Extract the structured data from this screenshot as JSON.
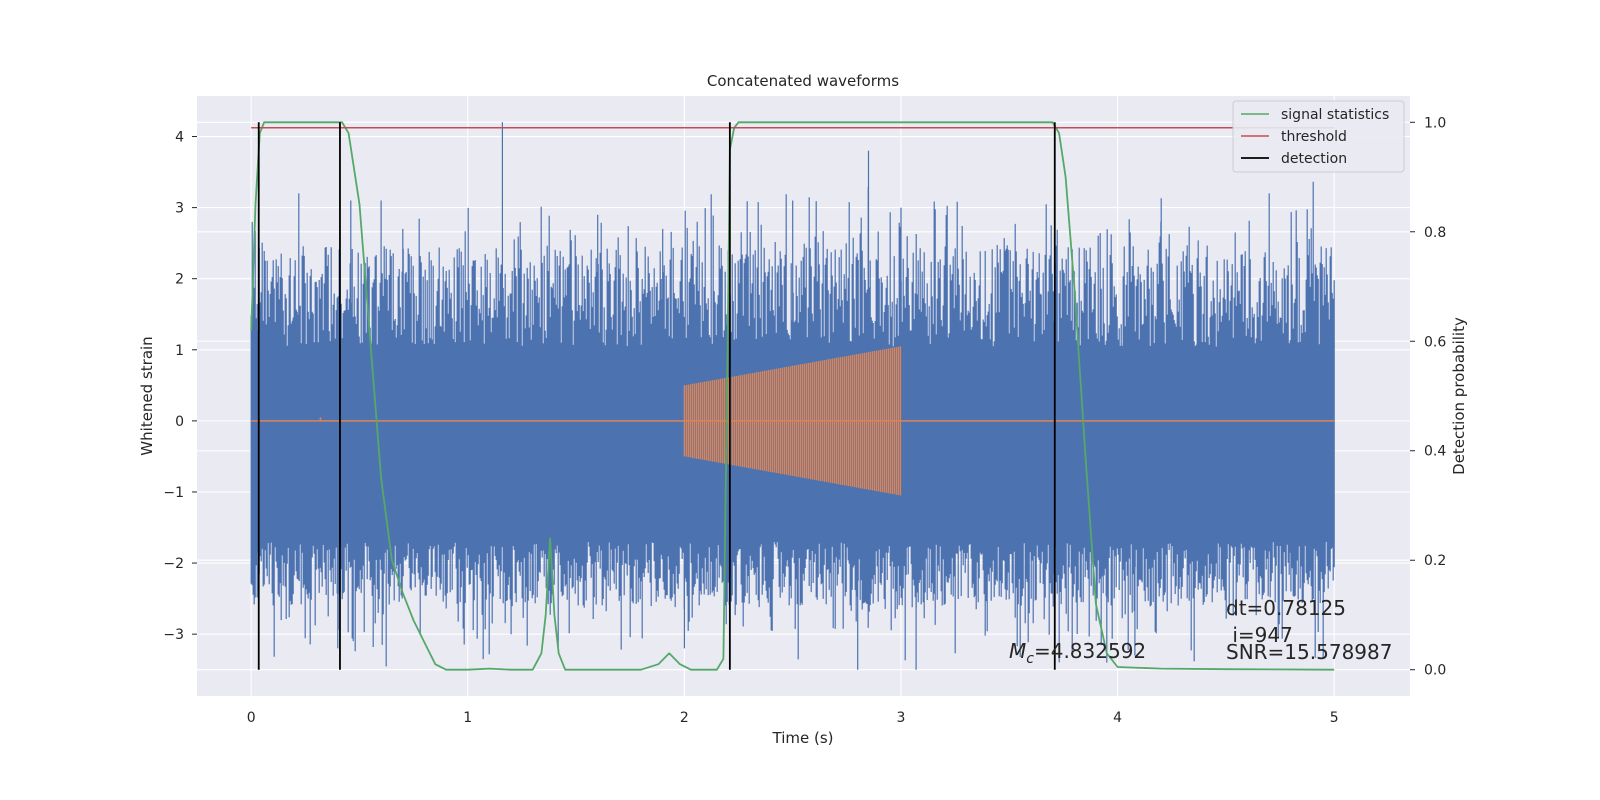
{
  "chart_data": {
    "type": "line",
    "title": "Concatenated waveforms",
    "xlabel": "Time (s)",
    "ylabel": "Whitened strain",
    "y2label": "Detection probability",
    "xlim": [
      -0.25,
      5.35
    ],
    "ylim": [
      -3.87,
      4.57
    ],
    "y2lim": [
      -0.048,
      1.048
    ],
    "xticks": [
      0,
      1,
      2,
      3,
      4,
      5
    ],
    "yticks": [
      -3,
      -2,
      -1,
      0,
      1,
      2,
      3,
      4
    ],
    "y2ticks": [
      0.0,
      0.2,
      0.4,
      0.6,
      0.8,
      1.0
    ],
    "xtick_labels": [
      "0",
      "1",
      "2",
      "3",
      "4",
      "5"
    ],
    "ytick_labels": [
      "−3",
      "−2",
      "−1",
      "0",
      "1",
      "2",
      "3",
      "4"
    ],
    "y2tick_labels": [
      "0.0",
      "0.2",
      "0.4",
      "0.6",
      "0.8",
      "1.0"
    ],
    "grid": true,
    "legend_position": "top-right",
    "colors": {
      "strain": "#4c72b0",
      "template": "#dd8452",
      "signal_statistics": "#55a868",
      "threshold": "#c44e52",
      "detection": "#000000",
      "background": "#eaeaf2",
      "grid": "#ffffff"
    },
    "series": [
      {
        "name": "signal statistics",
        "axis": "right",
        "x": [
          0.0,
          0.02,
          0.04,
          0.06,
          0.08,
          0.1,
          0.2,
          0.3,
          0.38,
          0.42,
          0.45,
          0.5,
          0.55,
          0.6,
          0.65,
          0.7,
          0.75,
          0.8,
          0.85,
          0.9,
          1.0,
          1.1,
          1.2,
          1.3,
          1.34,
          1.36,
          1.38,
          1.4,
          1.42,
          1.45,
          1.5,
          1.6,
          1.7,
          1.8,
          1.88,
          1.93,
          1.98,
          2.03,
          2.1,
          2.15,
          2.18,
          2.2,
          2.21,
          2.23,
          2.25,
          2.3,
          2.5,
          3.0,
          3.5,
          3.7,
          3.73,
          3.76,
          3.8,
          3.85,
          3.9,
          3.95,
          4.0,
          4.2,
          4.5,
          5.0
        ],
        "values": [
          0.62,
          0.85,
          0.98,
          1.0,
          1.0,
          1.0,
          1.0,
          1.0,
          1.0,
          1.0,
          0.98,
          0.85,
          0.6,
          0.35,
          0.2,
          0.14,
          0.09,
          0.05,
          0.01,
          0.0,
          0.0,
          0.002,
          0.0,
          0.0,
          0.03,
          0.1,
          0.24,
          0.1,
          0.03,
          0.0,
          0.0,
          0.0,
          0.0,
          0.0,
          0.01,
          0.03,
          0.01,
          0.0,
          0.0,
          0.0,
          0.02,
          0.6,
          0.95,
          0.99,
          1.0,
          1.0,
          1.0,
          1.0,
          1.0,
          1.0,
          0.98,
          0.9,
          0.7,
          0.4,
          0.12,
          0.03,
          0.005,
          0.002,
          0.001,
          0.0
        ]
      },
      {
        "name": "threshold",
        "axis": "right",
        "x": [
          0.0,
          5.0
        ],
        "values": [
          0.99,
          0.99
        ]
      },
      {
        "name": "detection",
        "axis": "right",
        "x": [
          0.035,
          0.41,
          2.21,
          3.71
        ],
        "y_range": [
          0.0,
          1.0
        ]
      }
    ],
    "strain": {
      "x_range": [
        0.0,
        5.0
      ],
      "typical_range": [
        -1.7,
        1.9
      ],
      "peaks": [
        {
          "x": 0.22,
          "y": 3.2
        },
        {
          "x": 0.46,
          "y": 3.1
        },
        {
          "x": 0.6,
          "y": 3.1
        },
        {
          "x": 0.7,
          "y": 2.7
        },
        {
          "x": 1.16,
          "y": 4.2
        },
        {
          "x": 1.6,
          "y": 2.9
        },
        {
          "x": 1.9,
          "y": 2.7
        },
        {
          "x": 2.5,
          "y": 3.1
        },
        {
          "x": 2.85,
          "y": 3.8
        },
        {
          "x": 3.0,
          "y": 3.0
        },
        {
          "x": 4.2,
          "y": 2.8
        },
        {
          "x": 4.7,
          "y": 3.2
        },
        {
          "x": 0.4,
          "y": -3.2
        },
        {
          "x": 1.2,
          "y": -3.0
        },
        {
          "x": 2.0,
          "y": -3.2
        },
        {
          "x": 2.8,
          "y": -3.5
        },
        {
          "x": 3.07,
          "y": -3.5
        },
        {
          "x": 3.95,
          "y": -3.4
        },
        {
          "x": 4.08,
          "y": -3.3
        },
        {
          "x": 4.8,
          "y": -2.4
        }
      ]
    },
    "template": {
      "x_range": [
        2.0,
        3.0
      ],
      "start_amplitude": 0.5,
      "end_amplitude": 1.05,
      "baseline": 0.0,
      "blip": {
        "x": 0.32,
        "y": 0.05
      }
    },
    "annotations": {
      "mc_label": "M",
      "mc_subscript": "c",
      "mc_value": "=4.832592",
      "dt": "dt=0.78125",
      "i": " i=947",
      "snr": "SNR=15.578987"
    }
  }
}
